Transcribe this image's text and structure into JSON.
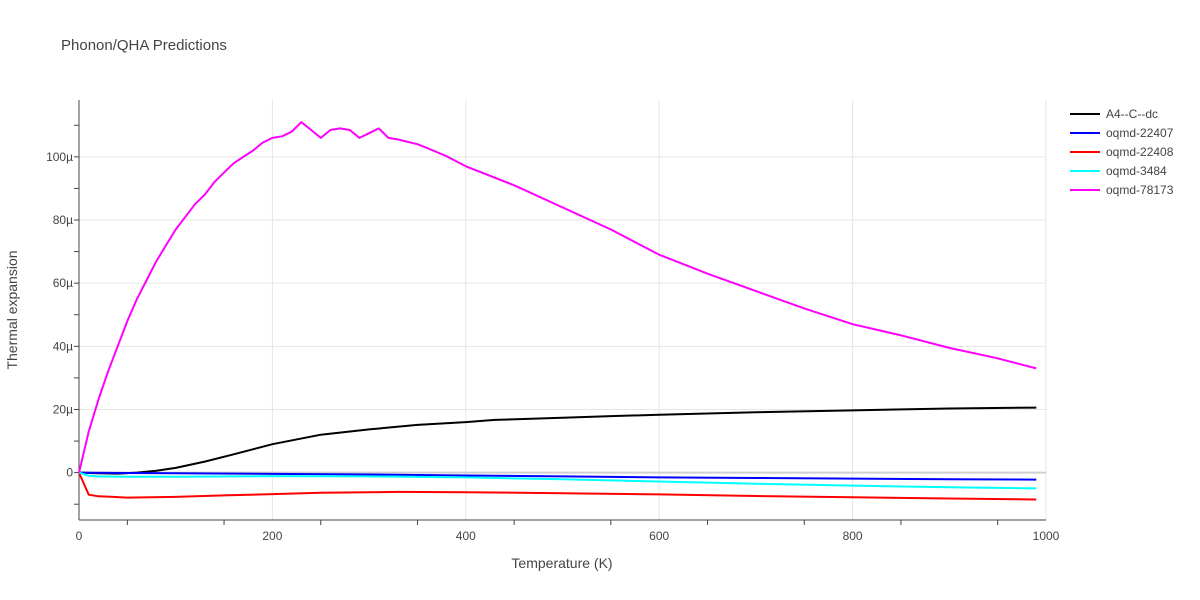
{
  "chart_data": {
    "type": "line",
    "title": "Phonon/QHA Predictions",
    "xlabel": "Temperature (K)",
    "ylabel": "Thermal expansion",
    "xlim": [
      0,
      1000
    ],
    "ylim": [
      -1.5e-05,
      0.000118
    ],
    "xticks": [
      0,
      200,
      400,
      600,
      800,
      1000
    ],
    "xtick_labels": [
      "0",
      "200",
      "400",
      "600",
      "800",
      "1000"
    ],
    "yticks": [
      0,
      2e-05,
      4e-05,
      6e-05,
      8e-05,
      0.0001
    ],
    "ytick_labels": [
      "0",
      "20µ",
      "40µ",
      "60µ",
      "80µ",
      "100µ"
    ],
    "grid": true,
    "legend_position": "top-right",
    "series": [
      {
        "name": "A4--C--dc",
        "color": "#000000",
        "x": [
          0,
          20,
          40,
          60,
          80,
          100,
          130,
          160,
          200,
          250,
          300,
          350,
          400,
          430,
          500,
          550,
          600,
          700,
          800,
          900,
          990
        ],
        "y": [
          0,
          -2e-07,
          -3e-07,
          0,
          6e-07,
          1.5e-06,
          3.5e-06,
          5.8e-06,
          9e-06,
          1.2e-05,
          1.37e-05,
          1.51e-05,
          1.6e-05,
          1.67e-05,
          1.74e-05,
          1.79e-05,
          1.83e-05,
          1.91e-05,
          1.97e-05,
          2.03e-05,
          2.06e-05
        ]
      },
      {
        "name": "oqmd-22407",
        "color": "#0000ff",
        "x": [
          0,
          100,
          200,
          300,
          400,
          500,
          600,
          700,
          800,
          900,
          990
        ],
        "y": [
          0,
          -2e-07,
          -4e-07,
          -6e-07,
          -9e-07,
          -1.2e-06,
          -1.5e-06,
          -1.7e-06,
          -1.9e-06,
          -2.1e-06,
          -2.2e-06
        ]
      },
      {
        "name": "oqmd-22408",
        "color": "#ff0000",
        "x": [
          0,
          10,
          20,
          30,
          50,
          100,
          150,
          200,
          250,
          300,
          330,
          400,
          500,
          600,
          700,
          800,
          900,
          990
        ],
        "y": [
          0,
          -7e-06,
          -7.5e-06,
          -7.6e-06,
          -7.9e-06,
          -7.7e-06,
          -7.2e-06,
          -6.8e-06,
          -6.4e-06,
          -6.2e-06,
          -6.1e-06,
          -6.2e-06,
          -6.5e-06,
          -6.9e-06,
          -7.4e-06,
          -7.8e-06,
          -8.2e-06,
          -8.5e-06
        ]
      },
      {
        "name": "oqmd-3484",
        "color": "#00ffff",
        "x": [
          0,
          10,
          20,
          50,
          100,
          200,
          300,
          400,
          500,
          600,
          700,
          800,
          900,
          990
        ],
        "y": [
          0,
          -1e-06,
          -1.2e-06,
          -1.3e-06,
          -1.3e-06,
          -1.1e-06,
          -1.2e-06,
          -1.5e-06,
          -2.1e-06,
          -2.8e-06,
          -3.5e-06,
          -4.1e-06,
          -4.6e-06,
          -5e-06
        ]
      },
      {
        "name": "oqmd-78173",
        "color": "#ff00ff",
        "x": [
          0,
          10,
          20,
          30,
          40,
          50,
          60,
          70,
          80,
          90,
          100,
          110,
          120,
          130,
          140,
          150,
          160,
          170,
          180,
          190,
          200,
          210,
          220,
          230,
          240,
          250,
          260,
          270,
          280,
          290,
          300,
          310,
          320,
          330,
          350,
          360,
          380,
          400,
          450,
          500,
          550,
          600,
          650,
          700,
          750,
          800,
          850,
          900,
          950,
          990
        ],
        "y": [
          0,
          1.3e-05,
          2.3e-05,
          3.2e-05,
          4e-05,
          4.8e-05,
          5.5e-05,
          6.1e-05,
          6.7e-05,
          7.2e-05,
          7.7e-05,
          8.1e-05,
          8.5e-05,
          8.8e-05,
          9.2e-05,
          9.5e-05,
          9.8e-05,
          0.0001,
          0.000102,
          0.0001045,
          0.000106,
          0.0001065,
          0.000108,
          0.000111,
          0.0001085,
          0.000106,
          0.0001085,
          0.000109,
          0.0001085,
          0.000106,
          0.0001075,
          0.000109,
          0.000106,
          0.0001055,
          0.000104,
          0.0001028,
          0.0001002,
          9.7e-05,
          9.1e-05,
          8.4e-05,
          7.7e-05,
          6.9e-05,
          6.3e-05,
          5.75e-05,
          5.2e-05,
          4.7e-05,
          4.35e-05,
          3.95e-05,
          3.62e-05,
          3.3e-05
        ]
      }
    ]
  }
}
